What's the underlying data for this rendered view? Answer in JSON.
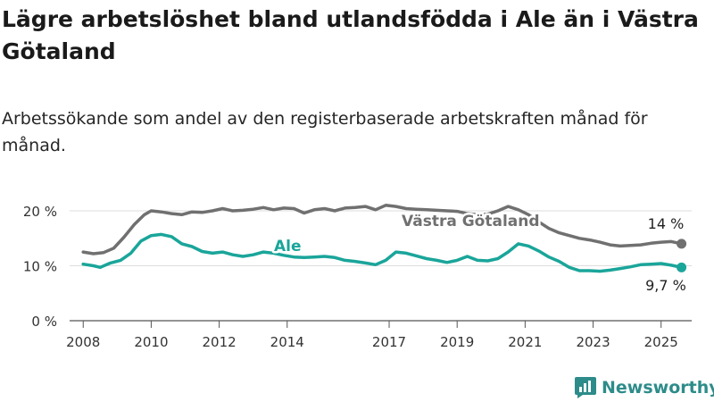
{
  "title": "Lägre arbetslöshet bland utlandsfödda i Ale än i Västra Götaland",
  "subtitle": "Arbetssökande som andel av den registerbaserade arbetskraften månad för månad.",
  "brand": {
    "name": "Newsworthy",
    "icon": "newsworthy-logo-icon"
  },
  "colors": {
    "vastra_gotaland": "#707070",
    "ale": "#1aa59a",
    "brand": "#2d8c8a"
  },
  "chart_data": {
    "type": "line",
    "ylim": [
      0,
      20
    ],
    "xlim": [
      2007.6,
      2025.9
    ],
    "grid": true,
    "y_ticks": [
      {
        "value": 0,
        "label": "0 %"
      },
      {
        "value": 10,
        "label": "10 %"
      },
      {
        "value": 20,
        "label": "20 %"
      }
    ],
    "x_ticks": [
      {
        "value": 2008,
        "label": "2008"
      },
      {
        "value": 2010,
        "label": "2010"
      },
      {
        "value": 2012,
        "label": "2012"
      },
      {
        "value": 2014,
        "label": "2014"
      },
      {
        "value": 2017,
        "label": "2017"
      },
      {
        "value": 2019,
        "label": "2019"
      },
      {
        "value": 2021,
        "label": "2021"
      },
      {
        "value": 2023,
        "label": "2023"
      },
      {
        "value": 2025,
        "label": "2025"
      }
    ],
    "series": [
      {
        "key": "vastra_gotaland",
        "name": "Västra Götaland",
        "end_label": "14 %",
        "points": [
          [
            2008.0,
            12.5
          ],
          [
            2008.3,
            12.2
          ],
          [
            2008.6,
            12.4
          ],
          [
            2008.9,
            13.2
          ],
          [
            2009.2,
            15.2
          ],
          [
            2009.5,
            17.5
          ],
          [
            2009.8,
            19.3
          ],
          [
            2010.0,
            20.0
          ],
          [
            2010.3,
            19.8
          ],
          [
            2010.6,
            19.5
          ],
          [
            2010.9,
            19.3
          ],
          [
            2011.2,
            19.8
          ],
          [
            2011.5,
            19.7
          ],
          [
            2011.8,
            20.0
          ],
          [
            2012.1,
            20.4
          ],
          [
            2012.4,
            20.0
          ],
          [
            2012.7,
            20.1
          ],
          [
            2013.0,
            20.3
          ],
          [
            2013.3,
            20.6
          ],
          [
            2013.6,
            20.2
          ],
          [
            2013.9,
            20.5
          ],
          [
            2014.2,
            20.4
          ],
          [
            2014.5,
            19.6
          ],
          [
            2014.8,
            20.2
          ],
          [
            2015.1,
            20.4
          ],
          [
            2015.4,
            20.0
          ],
          [
            2015.7,
            20.5
          ],
          [
            2016.0,
            20.6
          ],
          [
            2016.3,
            20.8
          ],
          [
            2016.6,
            20.2
          ],
          [
            2016.9,
            21.0
          ],
          [
            2017.2,
            20.8
          ],
          [
            2017.5,
            20.4
          ],
          [
            2017.8,
            20.3
          ],
          [
            2018.1,
            20.2
          ],
          [
            2018.4,
            20.1
          ],
          [
            2018.7,
            20.0
          ],
          [
            2019.0,
            19.9
          ],
          [
            2019.3,
            19.5
          ],
          [
            2019.6,
            19.3
          ],
          [
            2019.9,
            19.4
          ],
          [
            2020.2,
            20.0
          ],
          [
            2020.5,
            20.8
          ],
          [
            2020.8,
            20.2
          ],
          [
            2021.1,
            19.3
          ],
          [
            2021.4,
            18.0
          ],
          [
            2021.7,
            16.8
          ],
          [
            2022.0,
            16.0
          ],
          [
            2022.3,
            15.5
          ],
          [
            2022.6,
            15.0
          ],
          [
            2022.9,
            14.7
          ],
          [
            2023.2,
            14.3
          ],
          [
            2023.5,
            13.8
          ],
          [
            2023.8,
            13.6
          ],
          [
            2024.1,
            13.7
          ],
          [
            2024.4,
            13.8
          ],
          [
            2024.7,
            14.1
          ],
          [
            2025.0,
            14.3
          ],
          [
            2025.3,
            14.4
          ],
          [
            2025.6,
            14.0
          ]
        ]
      },
      {
        "key": "ale",
        "name": "Ale",
        "end_label": "9,7 %",
        "points": [
          [
            2008.0,
            10.3
          ],
          [
            2008.3,
            10.0
          ],
          [
            2008.5,
            9.7
          ],
          [
            2008.8,
            10.5
          ],
          [
            2009.1,
            11.0
          ],
          [
            2009.4,
            12.3
          ],
          [
            2009.7,
            14.5
          ],
          [
            2010.0,
            15.5
          ],
          [
            2010.3,
            15.7
          ],
          [
            2010.6,
            15.3
          ],
          [
            2010.9,
            14.0
          ],
          [
            2011.2,
            13.5
          ],
          [
            2011.5,
            12.6
          ],
          [
            2011.8,
            12.3
          ],
          [
            2012.1,
            12.5
          ],
          [
            2012.4,
            12.0
          ],
          [
            2012.7,
            11.7
          ],
          [
            2013.0,
            12.0
          ],
          [
            2013.3,
            12.5
          ],
          [
            2013.6,
            12.3
          ],
          [
            2013.9,
            11.9
          ],
          [
            2014.2,
            11.6
          ],
          [
            2014.5,
            11.5
          ],
          [
            2014.8,
            11.6
          ],
          [
            2015.1,
            11.7
          ],
          [
            2015.4,
            11.5
          ],
          [
            2015.7,
            11.0
          ],
          [
            2016.0,
            10.8
          ],
          [
            2016.3,
            10.5
          ],
          [
            2016.6,
            10.2
          ],
          [
            2016.9,
            11.0
          ],
          [
            2017.2,
            12.5
          ],
          [
            2017.5,
            12.3
          ],
          [
            2017.8,
            11.8
          ],
          [
            2018.1,
            11.3
          ],
          [
            2018.4,
            11.0
          ],
          [
            2018.7,
            10.6
          ],
          [
            2019.0,
            11.0
          ],
          [
            2019.3,
            11.7
          ],
          [
            2019.6,
            11.0
          ],
          [
            2019.9,
            10.9
          ],
          [
            2020.2,
            11.3
          ],
          [
            2020.5,
            12.5
          ],
          [
            2020.8,
            14.0
          ],
          [
            2021.1,
            13.6
          ],
          [
            2021.4,
            12.7
          ],
          [
            2021.7,
            11.6
          ],
          [
            2022.0,
            10.8
          ],
          [
            2022.3,
            9.7
          ],
          [
            2022.6,
            9.1
          ],
          [
            2022.9,
            9.1
          ],
          [
            2023.2,
            9.0
          ],
          [
            2023.5,
            9.2
          ],
          [
            2023.8,
            9.5
          ],
          [
            2024.1,
            9.8
          ],
          [
            2024.4,
            10.2
          ],
          [
            2024.7,
            10.3
          ],
          [
            2025.0,
            10.4
          ],
          [
            2025.3,
            10.1
          ],
          [
            2025.6,
            9.7
          ]
        ]
      }
    ]
  }
}
